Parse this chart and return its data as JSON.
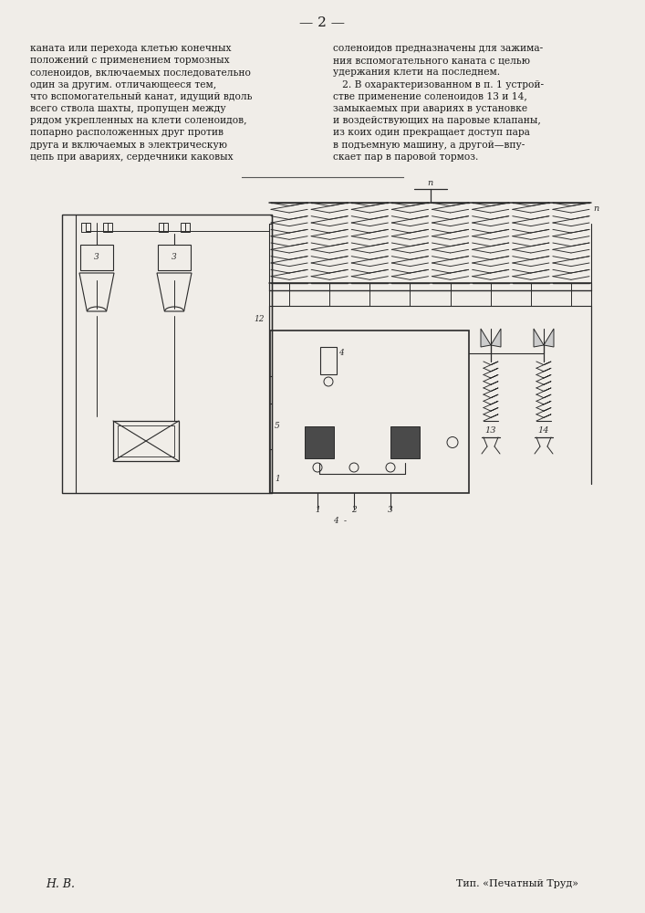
{
  "page_number": "2",
  "background_color": "#f0ede8",
  "text_color": "#1a1a1a",
  "lc": "#2a2a2a",
  "left_col_lines": [
    "каната или перехода клетью конечных",
    "положений с применением тормозных",
    "соленоидов, включаемых последовательно",
    "один за другим. отличающееся тем,",
    "что вспомогательный канат, идущий вдоль",
    "всего ствола шахты, пропущен между",
    "рядом укрепленных на клети соленоидов,",
    "попарно расположенных друг против",
    "друга и включаемых в электрическую",
    "цепь при авариях, сердечники каковых"
  ],
  "right_col_lines": [
    "соленоидов предназначены для зажима-",
    "ния вспомогательного каната с целью",
    "удержания клети на последнем.",
    "   2. В охарактеризованном в п. 1 устрой-",
    "стве применение соленоидов 13 и 14,",
    "замыкаемых при авариях в установке",
    "и воздействующих на паровые клапаны,",
    "из коих один прекращает доступ пара",
    "в подъемную машину, а другой—впу-",
    "скает пар в паровой тормоз."
  ],
  "footer_left": "H. B.",
  "footer_right": "Тип. «Печатный Труд»"
}
